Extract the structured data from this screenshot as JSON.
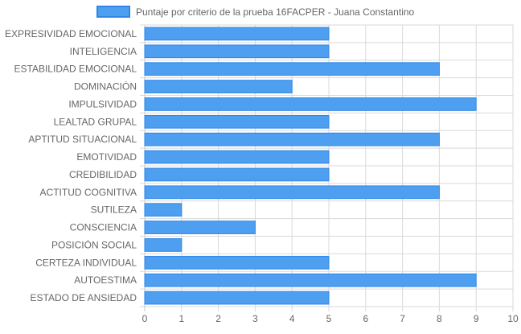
{
  "chart_data": {
    "type": "bar",
    "orientation": "horizontal",
    "categories": [
      "EXPRESIVIDAD EMOCIONAL",
      "INTELIGENCIA",
      "ESTABILIDAD EMOCIONAL",
      "DOMINACIÓN",
      "IMPULSIVIDAD",
      "LEALTAD GRUPAL",
      "APTITUD SITUACIONAL",
      "EMOTIVIDAD",
      "CREDIBILIDAD",
      "ACTITUD COGNITIVA",
      "SUTILEZA",
      "CONSCIENCIA",
      "POSICIÓN SOCIAL",
      "CERTEZA INDIVIDUAL",
      "AUTOESTIMA",
      "ESTADO DE ANSIEDAD"
    ],
    "series": [
      {
        "name": "Puntaje por criterio de la prueba 16FACPER - Juana Constantino",
        "values": [
          5,
          5,
          8,
          4,
          9,
          5,
          8,
          5,
          5,
          8,
          1,
          3,
          1,
          5,
          9,
          5
        ]
      }
    ],
    "xlim": [
      0,
      10
    ],
    "xticks": [
      "0",
      "1",
      "2",
      "3",
      "4",
      "5",
      "6",
      "7",
      "8",
      "9",
      "10"
    ],
    "grid": true,
    "legend_position": "top",
    "colors": {
      "bar_fill": "#4e9ff0",
      "bar_border": "#2f86e8",
      "grid": "#d9d9d9",
      "axis_text": "#666666"
    }
  }
}
